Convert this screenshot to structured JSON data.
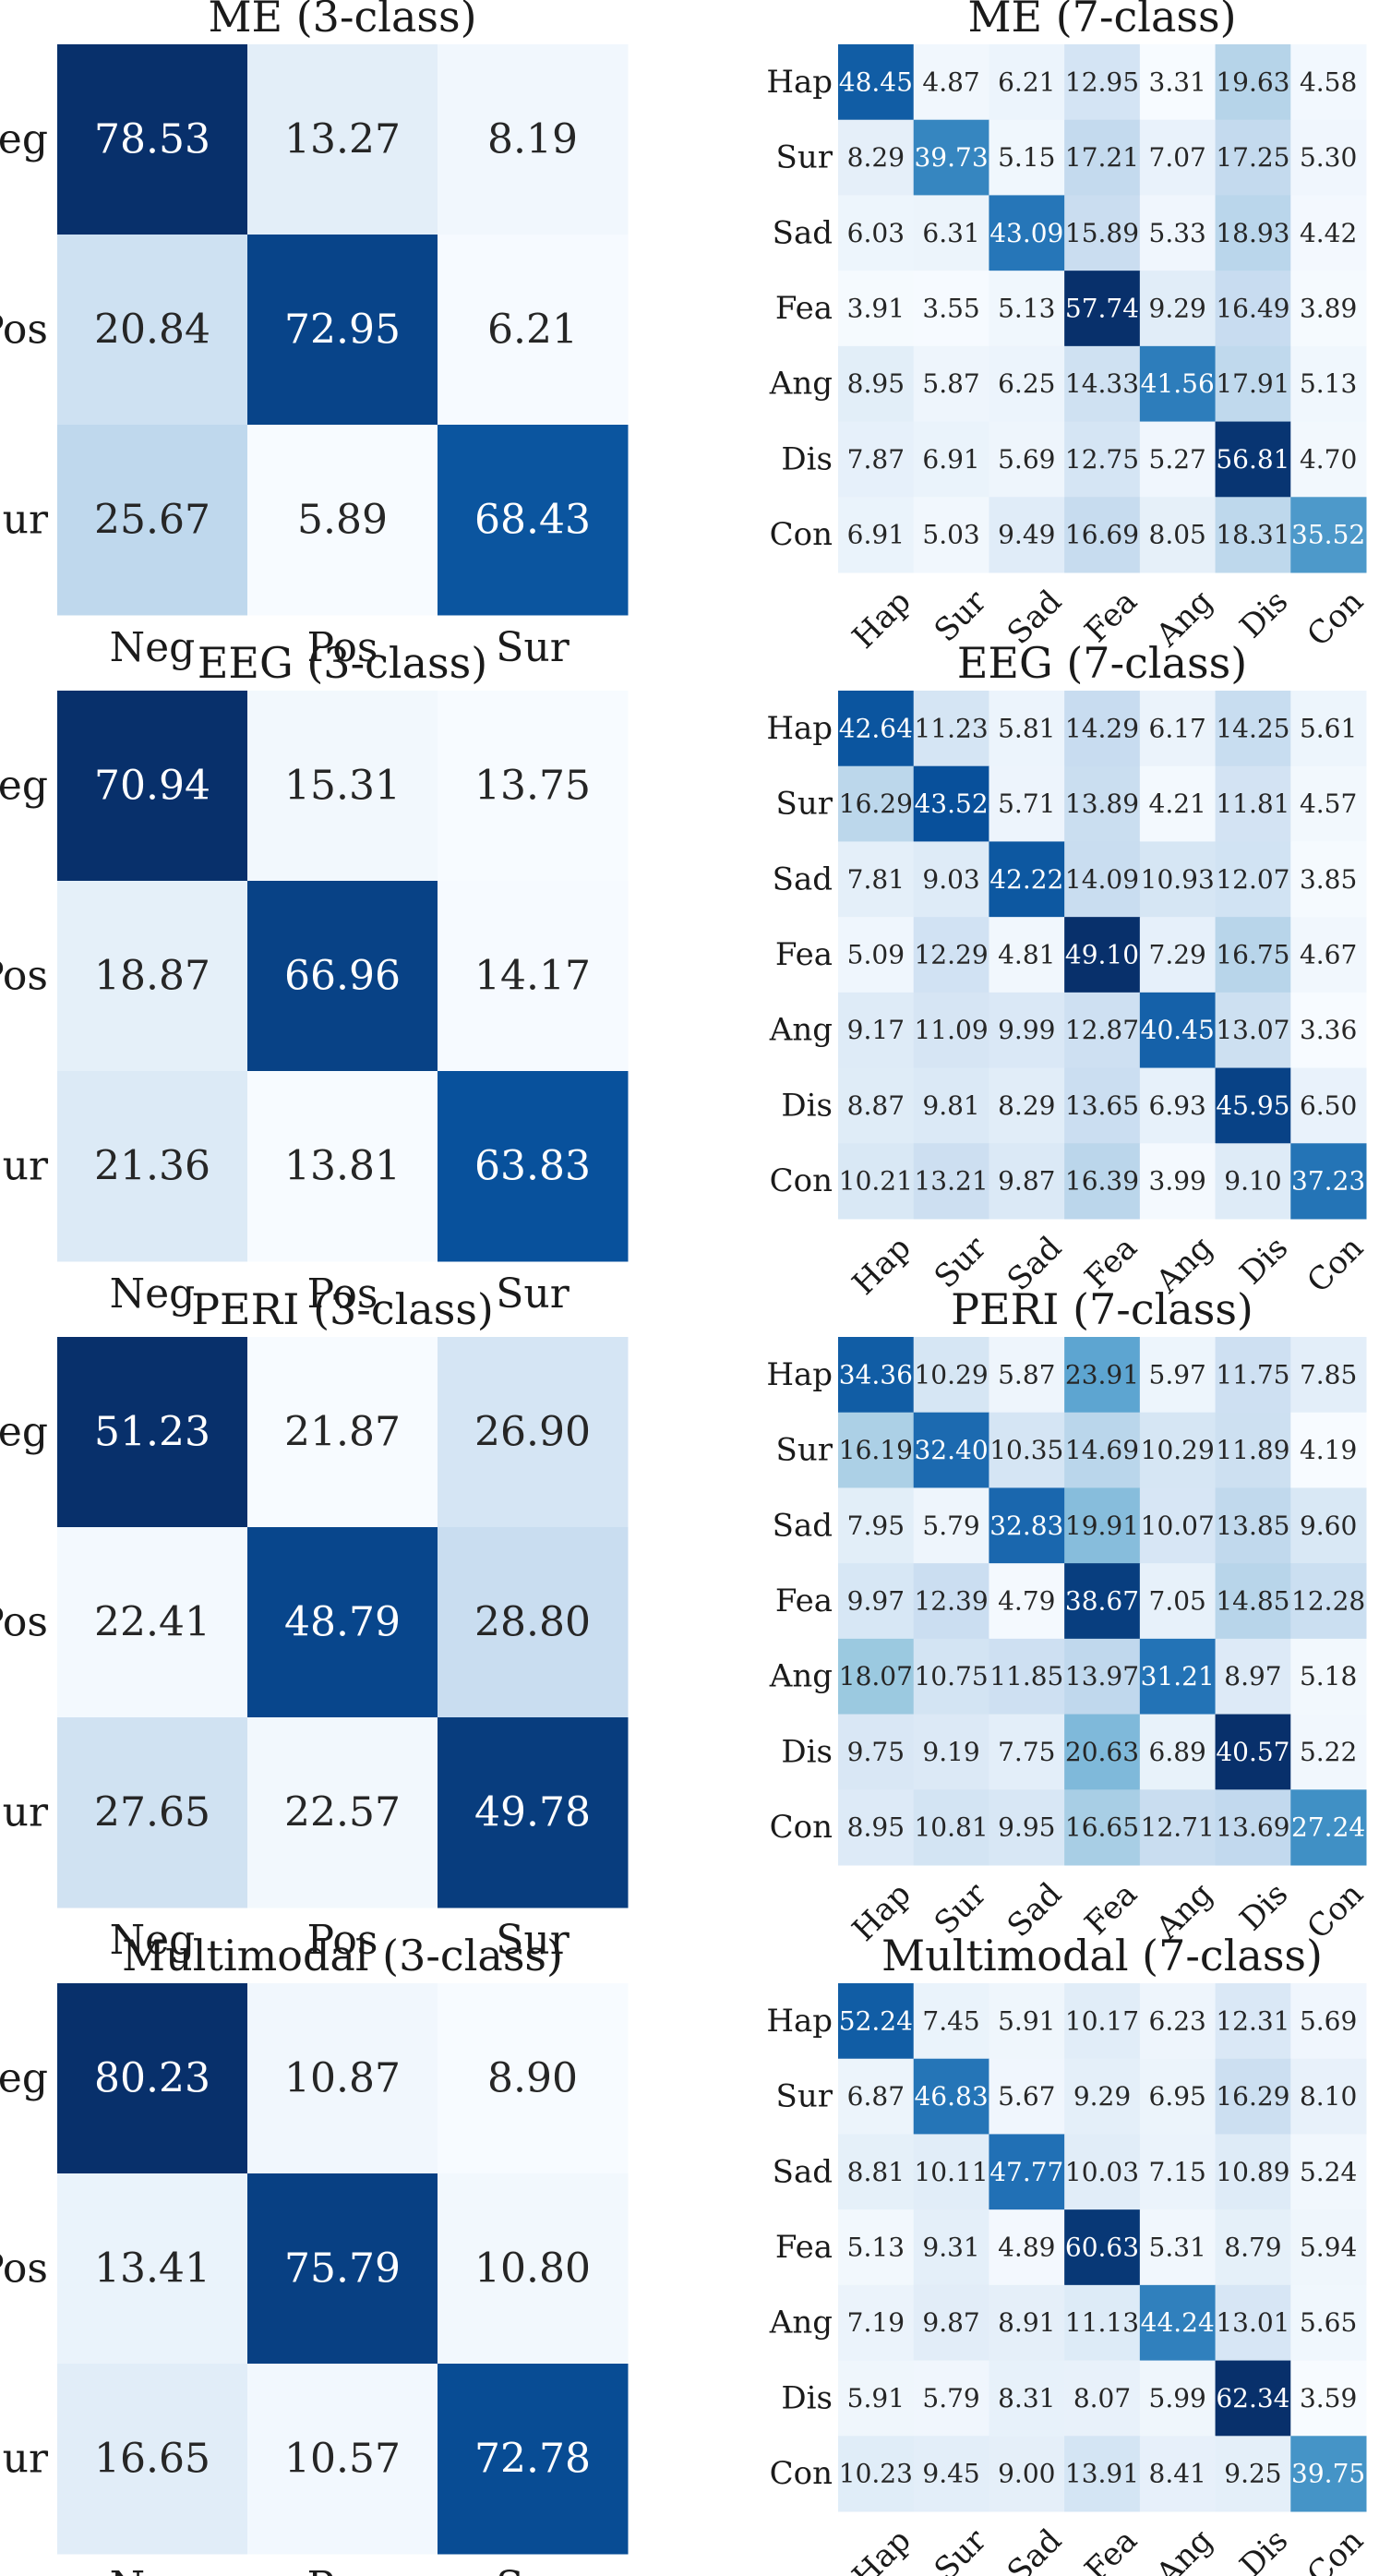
{
  "chart_data": [
    {
      "type": "heatmap",
      "title": "ME (3-class)",
      "x_categories": [
        "Neg",
        "Pos",
        "Sur"
      ],
      "y_categories": [
        "Neg",
        "Pos",
        "Sur"
      ],
      "values": [
        [
          "78.53",
          "13.27",
          "8.19"
        ],
        [
          "20.84",
          "72.95",
          "6.21"
        ],
        [
          "25.67",
          "5.89",
          "68.43"
        ]
      ]
    },
    {
      "type": "heatmap",
      "title": "ME (7-class)",
      "x_categories": [
        "Hap",
        "Sur",
        "Sad",
        "Fea",
        "Ang",
        "Dis",
        "Con"
      ],
      "y_categories": [
        "Hap",
        "Sur",
        "Sad",
        "Fea",
        "Ang",
        "Dis",
        "Con"
      ],
      "values": [
        [
          "48.45",
          "4.87",
          "6.21",
          "12.95",
          "3.31",
          "19.63",
          "4.58"
        ],
        [
          "8.29",
          "39.73",
          "5.15",
          "17.21",
          "7.07",
          "17.25",
          "5.30"
        ],
        [
          "6.03",
          "6.31",
          "43.09",
          "15.89",
          "5.33",
          "18.93",
          "4.42"
        ],
        [
          "3.91",
          "3.55",
          "5.13",
          "57.74",
          "9.29",
          "16.49",
          "3.89"
        ],
        [
          "8.95",
          "5.87",
          "6.25",
          "14.33",
          "41.56",
          "17.91",
          "5.13"
        ],
        [
          "7.87",
          "6.91",
          "5.69",
          "12.75",
          "5.27",
          "56.81",
          "4.70"
        ],
        [
          "6.91",
          "5.03",
          "9.49",
          "16.69",
          "8.05",
          "18.31",
          "35.52"
        ]
      ]
    },
    {
      "type": "heatmap",
      "title": "EEG (3-class)",
      "x_categories": [
        "Neg",
        "Pos",
        "Sur"
      ],
      "y_categories": [
        "Neg",
        "Pos",
        "Sur"
      ],
      "values": [
        [
          "70.94",
          "15.31",
          "13.75"
        ],
        [
          "18.87",
          "66.96",
          "14.17"
        ],
        [
          "21.36",
          "13.81",
          "63.83"
        ]
      ]
    },
    {
      "type": "heatmap",
      "title": "EEG (7-class)",
      "x_categories": [
        "Hap",
        "Sur",
        "Sad",
        "Fea",
        "Ang",
        "Dis",
        "Con"
      ],
      "y_categories": [
        "Hap",
        "Sur",
        "Sad",
        "Fea",
        "Ang",
        "Dis",
        "Con"
      ],
      "values": [
        [
          "42.64",
          "11.23",
          "5.81",
          "14.29",
          "6.17",
          "14.25",
          "5.61"
        ],
        [
          "16.29",
          "43.52",
          "5.71",
          "13.89",
          "4.21",
          "11.81",
          "4.57"
        ],
        [
          "7.81",
          "9.03",
          "42.22",
          "14.09",
          "10.93",
          "12.07",
          "3.85"
        ],
        [
          "5.09",
          "12.29",
          "4.81",
          "49.10",
          "7.29",
          "16.75",
          "4.67"
        ],
        [
          "9.17",
          "11.09",
          "9.99",
          "12.87",
          "40.45",
          "13.07",
          "3.36"
        ],
        [
          "8.87",
          "9.81",
          "8.29",
          "13.65",
          "6.93",
          "45.95",
          "6.50"
        ],
        [
          "10.21",
          "13.21",
          "9.87",
          "16.39",
          "3.99",
          "9.10",
          "37.23"
        ]
      ]
    },
    {
      "type": "heatmap",
      "title": "PERI (3-class)",
      "x_categories": [
        "Neg",
        "Pos",
        "Sur"
      ],
      "y_categories": [
        "Neg",
        "Pos",
        "Sur"
      ],
      "values": [
        [
          "51.23",
          "21.87",
          "26.90"
        ],
        [
          "22.41",
          "48.79",
          "28.80"
        ],
        [
          "27.65",
          "22.57",
          "49.78"
        ]
      ]
    },
    {
      "type": "heatmap",
      "title": "PERI (7-class)",
      "x_categories": [
        "Hap",
        "Sur",
        "Sad",
        "Fea",
        "Ang",
        "Dis",
        "Con"
      ],
      "y_categories": [
        "Hap",
        "Sur",
        "Sad",
        "Fea",
        "Ang",
        "Dis",
        "Con"
      ],
      "values": [
        [
          "34.36",
          "10.29",
          "5.87",
          "23.91",
          "5.97",
          "11.75",
          "7.85"
        ],
        [
          "16.19",
          "32.40",
          "10.35",
          "14.69",
          "10.29",
          "11.89",
          "4.19"
        ],
        [
          "7.95",
          "5.79",
          "32.83",
          "19.91",
          "10.07",
          "13.85",
          "9.60"
        ],
        [
          "9.97",
          "12.39",
          "4.79",
          "38.67",
          "7.05",
          "14.85",
          "12.28"
        ],
        [
          "18.07",
          "10.75",
          "11.85",
          "13.97",
          "31.21",
          "8.97",
          "5.18"
        ],
        [
          "9.75",
          "9.19",
          "7.75",
          "20.63",
          "6.89",
          "40.57",
          "5.22"
        ],
        [
          "8.95",
          "10.81",
          "9.95",
          "16.65",
          "12.71",
          "13.69",
          "27.24"
        ]
      ]
    },
    {
      "type": "heatmap",
      "title": "Multimodal (3-class)",
      "x_categories": [
        "Neg",
        "Pos",
        "Sur"
      ],
      "y_categories": [
        "Neg",
        "Pos",
        "Sur"
      ],
      "values": [
        [
          "80.23",
          "10.87",
          "8.90"
        ],
        [
          "13.41",
          "75.79",
          "10.80"
        ],
        [
          "16.65",
          "10.57",
          "72.78"
        ]
      ]
    },
    {
      "type": "heatmap",
      "title": "Multimodal (7-class)",
      "x_categories": [
        "Hap",
        "Sur",
        "Sad",
        "Fea",
        "Ang",
        "Dis",
        "Con"
      ],
      "y_categories": [
        "Hap",
        "Sur",
        "Sad",
        "Fea",
        "Ang",
        "Dis",
        "Con"
      ],
      "values": [
        [
          "52.24",
          "7.45",
          "5.91",
          "10.17",
          "6.23",
          "12.31",
          "5.69"
        ],
        [
          "6.87",
          "46.83",
          "5.67",
          "9.29",
          "6.95",
          "16.29",
          "8.10"
        ],
        [
          "8.81",
          "10.11",
          "47.77",
          "10.03",
          "7.15",
          "10.89",
          "5.24"
        ],
        [
          "5.13",
          "9.31",
          "4.89",
          "60.63",
          "5.31",
          "8.79",
          "5.94"
        ],
        [
          "7.19",
          "9.87",
          "8.91",
          "11.13",
          "44.24",
          "13.01",
          "5.65"
        ],
        [
          "5.91",
          "5.79",
          "8.31",
          "8.07",
          "5.99",
          "62.34",
          "3.59"
        ],
        [
          "10.23",
          "9.45",
          "9.00",
          "13.91",
          "8.41",
          "9.25",
          "39.75"
        ]
      ]
    }
  ]
}
